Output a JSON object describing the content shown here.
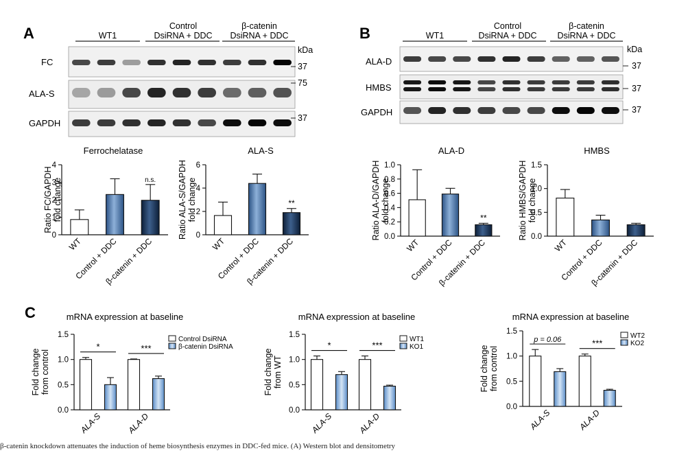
{
  "panels": {
    "A": {
      "letter": "A",
      "groups": [
        "WT1",
        "Control\nDsiRNA + DDC",
        "β-catenin\nDsiRNA + DDC"
      ],
      "blots": [
        {
          "label": "FC",
          "markers": [
            "37"
          ]
        },
        {
          "label": "ALA-S",
          "markers": [
            "75"
          ]
        },
        {
          "label": "GAPDH",
          "markers": [
            "37"
          ]
        }
      ],
      "kda_label": "kDa"
    },
    "B": {
      "letter": "B",
      "groups": [
        "WT1",
        "Control\nDsiRNA + DDC",
        "β-catenin\nDsiRNA + DDC"
      ],
      "blots": [
        {
          "label": "ALA-D",
          "markers": [
            "37"
          ]
        },
        {
          "label": "HMBS",
          "markers": [
            "37"
          ]
        },
        {
          "label": "GAPDH",
          "markers": [
            "37"
          ]
        }
      ],
      "kda_label": "kDa"
    },
    "C": {
      "letter": "C"
    }
  },
  "chart_data": [
    {
      "id": "fc",
      "type": "bar",
      "title": "Ferrochelatase",
      "ylabel": "Ratio FC/GAPDH\nfold change",
      "categories": [
        "WT",
        "Control + DDC",
        "β-catenin + DDC"
      ],
      "values": [
        0.87,
        2.3,
        1.97
      ],
      "errors": [
        0.55,
        0.9,
        0.9
      ],
      "ylim": [
        0,
        4
      ],
      "yticks": [
        "0",
        "1",
        "2",
        "3",
        "4"
      ],
      "annotations": [
        "",
        "",
        "n.s."
      ],
      "colors": [
        "white",
        "mid",
        "dark"
      ]
    },
    {
      "id": "alas",
      "type": "bar",
      "title": "ALA-S",
      "ylabel": "Ratio ALA-S/GAPDH\nfold change",
      "categories": [
        "WT",
        "Control + DDC",
        "β-catenin + DDC"
      ],
      "values": [
        1.65,
        4.4,
        1.9
      ],
      "errors": [
        1.15,
        0.8,
        0.35
      ],
      "ylim": [
        0,
        6
      ],
      "yticks": [
        "0",
        "2",
        "4",
        "6"
      ],
      "annotations": [
        "",
        "",
        "**"
      ],
      "colors": [
        "white",
        "mid",
        "dark"
      ]
    },
    {
      "id": "alad",
      "type": "bar",
      "title": "ALA-D",
      "ylabel": "Ratio ALA-D/GAPDH\nfold change",
      "categories": [
        "WT",
        "Control + DDC",
        "β-catenin + DDC"
      ],
      "values": [
        0.51,
        0.59,
        0.16
      ],
      "errors": [
        0.42,
        0.08,
        0.02
      ],
      "ylim": [
        0,
        1.0
      ],
      "yticks": [
        "0.0",
        "0.2",
        "0.4",
        "0.6",
        "0.8",
        "1.0"
      ],
      "annotations": [
        "",
        "",
        "**"
      ],
      "colors": [
        "white",
        "mid",
        "dark"
      ]
    },
    {
      "id": "hmbs",
      "type": "bar",
      "title": "HMBS",
      "ylabel": "Ratio HMBS/GAPDH\nfold change",
      "categories": [
        "WT",
        "Control + DDC",
        "β-catenin + DDC"
      ],
      "values": [
        0.8,
        0.34,
        0.24
      ],
      "errors": [
        0.18,
        0.1,
        0.03
      ],
      "ylim": [
        0,
        1.5
      ],
      "yticks": [
        "0.0",
        "0.5",
        "1.0",
        "1.5"
      ],
      "annotations": [
        "",
        "",
        ""
      ],
      "colors": [
        "white",
        "mid",
        "dark"
      ]
    },
    {
      "id": "c1",
      "type": "bar",
      "title": "mRNA expression at baseline",
      "ylabel": "Fold change\nfrom control",
      "categories": [
        "ALA-S",
        "ALA-D"
      ],
      "series": [
        {
          "name": "Control DsiRNA",
          "values": [
            1.0,
            1.0
          ],
          "errors": [
            0.04,
            0.01
          ]
        },
        {
          "name": "β-catenin DsiRNA",
          "values": [
            0.5,
            0.62
          ],
          "errors": [
            0.14,
            0.05
          ]
        }
      ],
      "ylim": [
        0,
        1.5
      ],
      "yticks": [
        "0.0",
        "0.5",
        "1.0",
        "1.5"
      ],
      "significance": [
        "*",
        "***"
      ],
      "legend": "top-right"
    },
    {
      "id": "c2",
      "type": "bar",
      "title": "mRNA expression at baseline",
      "ylabel": "Fold change\nfrom WT",
      "categories": [
        "ALA-S",
        "ALA-D"
      ],
      "series": [
        {
          "name": "WT1",
          "values": [
            1.0,
            1.0
          ],
          "errors": [
            0.07,
            0.07
          ]
        },
        {
          "name": "KO1",
          "values": [
            0.7,
            0.47
          ],
          "errors": [
            0.06,
            0.02
          ]
        }
      ],
      "ylim": [
        0,
        1.5
      ],
      "yticks": [
        "0.0",
        "0.5",
        "1.0",
        "1.5"
      ],
      "significance": [
        "*",
        "***"
      ],
      "legend": "top-right"
    },
    {
      "id": "c3",
      "type": "bar",
      "title": "mRNA expression at baseline",
      "ylabel": "Fold change\nfrom control",
      "categories": [
        "ALA-S",
        "ALA-D"
      ],
      "series": [
        {
          "name": "WT2",
          "values": [
            1.0,
            1.0
          ],
          "errors": [
            0.13,
            0.04
          ]
        },
        {
          "name": "KO2",
          "values": [
            0.69,
            0.32
          ],
          "errors": [
            0.06,
            0.02
          ]
        }
      ],
      "ylim": [
        0,
        1.5
      ],
      "yticks": [
        "0.0",
        "0.5",
        "1.0",
        "1.5"
      ],
      "significance": [
        "p = 0.06",
        "***"
      ],
      "legend": "top-right"
    }
  ],
  "caption": "β-catenin knockdown attenuates the induction of heme biosynthesis enzymes in DDC-fed mice. (A) Western blot and densitometry"
}
